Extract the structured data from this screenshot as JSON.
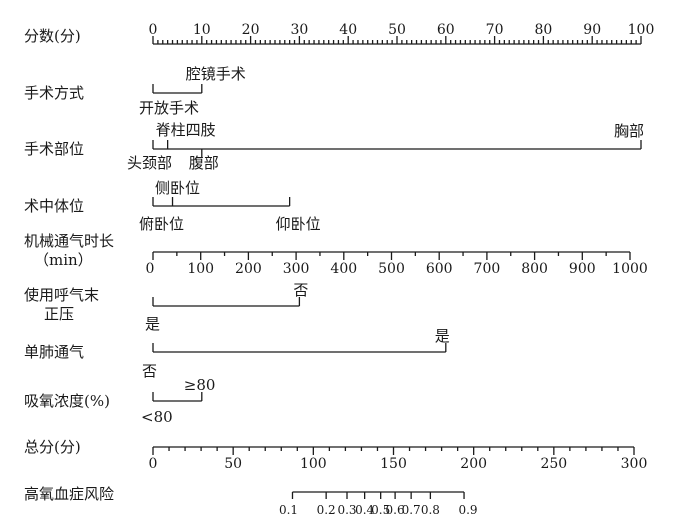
{
  "chart_data": {
    "type": "nomogram",
    "rows": [
      {
        "label": "分数(分)",
        "kind": "scale",
        "min": 0,
        "max": 100,
        "ticks": [
          0,
          10,
          20,
          30,
          40,
          50,
          60,
          70,
          80,
          90,
          100
        ],
        "minor_step": 1
      },
      {
        "label": "手术方式",
        "kind": "categorical",
        "categories": [
          {
            "name": "开放手术",
            "points": 0
          },
          {
            "name": "腔镜手术",
            "points": 10
          }
        ]
      },
      {
        "label": "手术部位",
        "kind": "categorical",
        "categories": [
          {
            "name": "头颈部",
            "points": 0
          },
          {
            "name": "脊柱四肢",
            "points": 3
          },
          {
            "name": "腹部",
            "points": 10
          },
          {
            "name": "胸部",
            "points": 100
          }
        ]
      },
      {
        "label": "术中体位",
        "kind": "categorical",
        "categories": [
          {
            "name": "俯卧位",
            "points": 0
          },
          {
            "name": "侧卧位",
            "points": 4
          },
          {
            "name": "仰卧位",
            "points": 28
          }
        ]
      },
      {
        "label": "机械通气时长",
        "label_line2": "（min）",
        "kind": "scale",
        "min": 0,
        "max": 1000,
        "ticks": [
          0,
          100,
          200,
          300,
          400,
          500,
          600,
          700,
          800,
          900,
          1000
        ],
        "minor_step": 50
      },
      {
        "label": "使用呼气末",
        "label_line2": "正压",
        "kind": "categorical",
        "categories": [
          {
            "name": "是",
            "points": 0
          },
          {
            "name": "否",
            "points": 30
          }
        ]
      },
      {
        "label": "单肺通气",
        "kind": "categorical",
        "categories": [
          {
            "name": "否",
            "points": 0
          },
          {
            "name": "是",
            "points": 60
          }
        ]
      },
      {
        "label": "吸氧浓度(%)",
        "kind": "categorical",
        "categories": [
          {
            "name": "<80",
            "points": 0
          },
          {
            "name": "≥80",
            "points": 10
          }
        ]
      },
      {
        "label": "总分(分)",
        "kind": "scale",
        "min": 0,
        "max": 300,
        "ticks": [
          0,
          50,
          100,
          150,
          200,
          250,
          300
        ],
        "minor_step": 10
      },
      {
        "label": "高氧血症风险",
        "kind": "probability",
        "ticks": [
          0.1,
          0.2,
          0.3,
          0.4,
          0.5,
          0.6,
          0.7,
          0.8,
          0.9
        ],
        "tick_labels": [
          "0.1",
          "0.2",
          "0.3",
          "0.4",
          "0.5",
          "0.6",
          "0.7",
          "0.8",
          "0.9"
        ],
        "total_points_at_tick": [
          87,
          108,
          121,
          132,
          142,
          151,
          161,
          173,
          194
        ]
      }
    ]
  }
}
